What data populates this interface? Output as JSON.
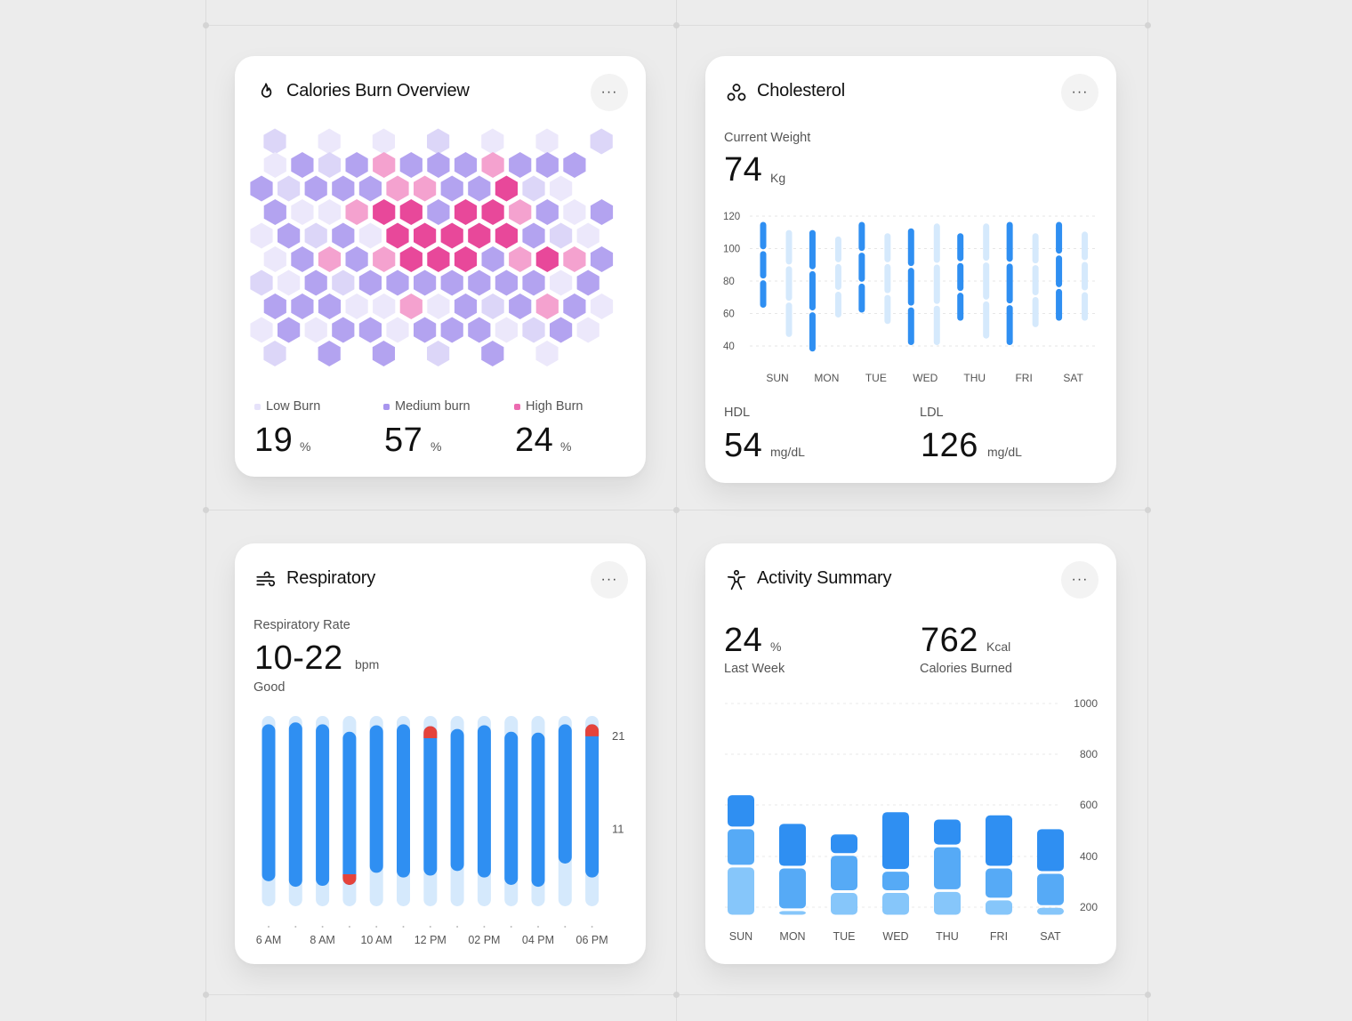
{
  "colors": {
    "bg": "#ececec",
    "card": "#ffffff",
    "blue_dark": "#2f8ff2",
    "blue_mid": "#56aaf6",
    "blue_light": "#86c6fa",
    "blue_pale": "#d5e9fc",
    "red": "#e5433b",
    "hex_low": "#ece8fb",
    "hex_low2": "#dcd6f8",
    "hex_med": "#b3a3f0",
    "hex_pink": "#f4a2cf",
    "hex_high": "#e8489a"
  },
  "calories": {
    "title": "Calories Burn Overview",
    "icon": "flame-icon",
    "more_label": "···",
    "legend": [
      {
        "label": "Low Burn",
        "value": "19",
        "unit": "%",
        "color": "#e6e2fa"
      },
      {
        "label": "Medium burn",
        "value": "57",
        "unit": "%",
        "color": "#a895ee"
      },
      {
        "label": "High Burn",
        "value": "24",
        "unit": "%",
        "color": "#ec6bb0"
      }
    ]
  },
  "cholesterol": {
    "title": "Cholesterol",
    "icon": "molecule-icon",
    "more_label": "···",
    "weight_label": "Current Weight",
    "weight_value": "74",
    "weight_unit": "Kg",
    "hdl_label": "HDL",
    "hdl_value": "54",
    "hdl_unit": "mg/dL",
    "ldl_label": "LDL",
    "ldl_value": "126",
    "ldl_unit": "mg/dL"
  },
  "respiratory": {
    "title": "Respiratory",
    "icon": "wind-icon",
    "more_label": "···",
    "rate_label": "Respiratory Rate",
    "rate_value": "10-22",
    "rate_unit": "bpm",
    "status": "Good"
  },
  "activity": {
    "title": "Activity Summary",
    "icon": "person-activity-icon",
    "more_label": "···",
    "left_value": "24",
    "left_unit": "%",
    "left_label": "Last Week",
    "right_value": "762",
    "right_unit": "Kcal",
    "right_label": "Calories Burned"
  },
  "chart_data": [
    {
      "id": "cholesterol-weight",
      "type": "range-bar",
      "categories": [
        "SUN",
        "MON",
        "TUE",
        "WED",
        "THU",
        "FRI",
        "SAT"
      ],
      "yticks": [
        120,
        100,
        80,
        60,
        40
      ],
      "ylim": [
        40,
        120
      ],
      "series": [
        {
          "values": [
            [
              63,
              117
            ],
            [
              36,
              112
            ],
            [
              60,
              117
            ],
            [
              40,
              113
            ],
            [
              55,
              110
            ],
            [
              40,
              117
            ],
            [
              55,
              117
            ]
          ]
        },
        {
          "values": [
            [
              45,
              112
            ],
            [
              57,
              108
            ],
            [
              53,
              110
            ],
            [
              40,
              116
            ],
            [
              44,
              116
            ],
            [
              51,
              110
            ],
            [
              55,
              111
            ]
          ]
        }
      ]
    },
    {
      "id": "respiratory-rate",
      "type": "range-bar",
      "categories": [
        "6 AM",
        "8 AM",
        "10 AM",
        "12 PM",
        "02 PM",
        "04 PM",
        "06 PM"
      ],
      "yticks": [
        21,
        11
      ],
      "values": [
        [
          5.4,
          22.3
        ],
        [
          4.8,
          22.5
        ],
        [
          4.9,
          22.3
        ],
        [
          5.0,
          21.5
        ],
        [
          6.3,
          22.2
        ],
        [
          5.8,
          22.3
        ],
        [
          6.0,
          22.1
        ],
        [
          6.5,
          21.8
        ],
        [
          5.8,
          22.2
        ],
        [
          5.0,
          21.5
        ],
        [
          4.8,
          21.4
        ],
        [
          7.3,
          22.3
        ],
        [
          5.8,
          22.3
        ]
      ],
      "ranges": [
        [
          2.7,
          23.2
        ],
        [
          2.7,
          23.2
        ],
        [
          2.7,
          23.2
        ],
        [
          2.7,
          23.2
        ],
        [
          2.7,
          23.2
        ],
        [
          2.7,
          23.2
        ],
        [
          2.7,
          23.2
        ],
        [
          2.7,
          23.2
        ],
        [
          2.7,
          23.2
        ],
        [
          2.7,
          23.2
        ],
        [
          2.7,
          23.2
        ],
        [
          2.7,
          23.2
        ],
        [
          2.7,
          23.2
        ]
      ],
      "flagged_high": [
        6,
        12
      ],
      "flagged_low": [
        3
      ]
    },
    {
      "id": "activity-calories",
      "type": "stacked-bar",
      "categories": [
        "SUN",
        "MON",
        "TUE",
        "WED",
        "THU",
        "FRI",
        "SAT"
      ],
      "yticks": [
        1000,
        800,
        600,
        400,
        200
      ],
      "ylim": [
        0,
        1000
      ],
      "series": [
        {
          "name": "low",
          "values": [
            235,
            30,
            115,
            115,
            120,
            80,
            45
          ]
        },
        {
          "name": "mid",
          "values": [
            180,
            200,
            175,
            100,
            210,
            150,
            160
          ]
        },
        {
          "name": "high",
          "values": [
            160,
            210,
            100,
            280,
            130,
            250,
            210
          ]
        }
      ]
    }
  ]
}
